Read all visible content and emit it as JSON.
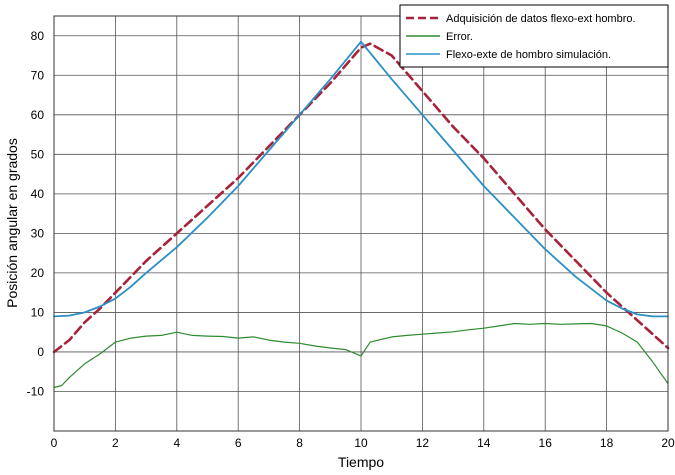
{
  "chart_data": {
    "type": "line",
    "xlabel": "Tiempo",
    "ylabel": "Posición angular en grados",
    "xlim": [
      0,
      20
    ],
    "ylim": [
      -20,
      85
    ],
    "xticks": [
      0,
      2,
      4,
      6,
      8,
      10,
      12,
      14,
      16,
      18,
      20
    ],
    "yticks": [
      -10,
      0,
      10,
      20,
      30,
      40,
      50,
      60,
      70,
      80
    ],
    "grid": true,
    "legend_position": "top-right",
    "series": [
      {
        "name": "Adquisición de datos flexo-ext hombro.",
        "color": "#a6233a",
        "style": "dashed",
        "x": [
          0,
          0.5,
          1,
          1.5,
          2,
          3,
          4,
          5,
          6,
          7,
          8,
          9,
          10,
          10.3,
          11,
          12,
          13,
          14,
          15,
          16,
          17,
          18,
          19,
          20
        ],
        "y": [
          0,
          3,
          7.5,
          11,
          15,
          23,
          30,
          37,
          44,
          52,
          60,
          68,
          77,
          78,
          75,
          66,
          57,
          49,
          40,
          31,
          23,
          15,
          8,
          1
        ]
      },
      {
        "name": "Error.",
        "color": "#2e8b2e",
        "style": "solid",
        "x": [
          0,
          0.25,
          0.5,
          1,
          1.5,
          2,
          2.5,
          3,
          3.5,
          4,
          4.5,
          5,
          5.5,
          6,
          6.5,
          7,
          7.5,
          8,
          8.5,
          9,
          9.5,
          10,
          10.3,
          11,
          11.5,
          12,
          12.5,
          13,
          13.5,
          14,
          14.5,
          15,
          15.5,
          16,
          16.5,
          17,
          17.5,
          18,
          18.5,
          19,
          19.5,
          20
        ],
        "y": [
          -9,
          -8.5,
          -6.5,
          -3,
          -0.5,
          2.5,
          3.5,
          4,
          4.2,
          5,
          4.2,
          4,
          3.9,
          3.5,
          3.8,
          3,
          2.5,
          2.2,
          1.5,
          1,
          0.6,
          -1,
          2.5,
          3.8,
          4.2,
          4.5,
          4.8,
          5.1,
          5.6,
          6,
          6.6,
          7.2,
          7,
          7.2,
          7,
          7.1,
          7.2,
          6.6,
          4.8,
          2.5,
          -2.5,
          -8
        ]
      },
      {
        "name": "Flexo-exte de hombro simulación.",
        "color": "#2b8fc6",
        "style": "solid",
        "x": [
          0,
          0.5,
          1,
          1.5,
          2,
          2.5,
          3,
          4,
          5,
          6,
          7,
          8,
          9,
          10,
          11,
          12,
          13,
          14,
          15,
          16,
          17,
          18,
          18.5,
          19,
          19.5,
          20
        ],
        "y": [
          9,
          9.2,
          10,
          11.5,
          13.5,
          16.5,
          20,
          26.5,
          34,
          42,
          51,
          60,
          69,
          78.5,
          69,
          60,
          51,
          42,
          34,
          26,
          19,
          13,
          11,
          9.5,
          9,
          9
        ]
      }
    ]
  }
}
